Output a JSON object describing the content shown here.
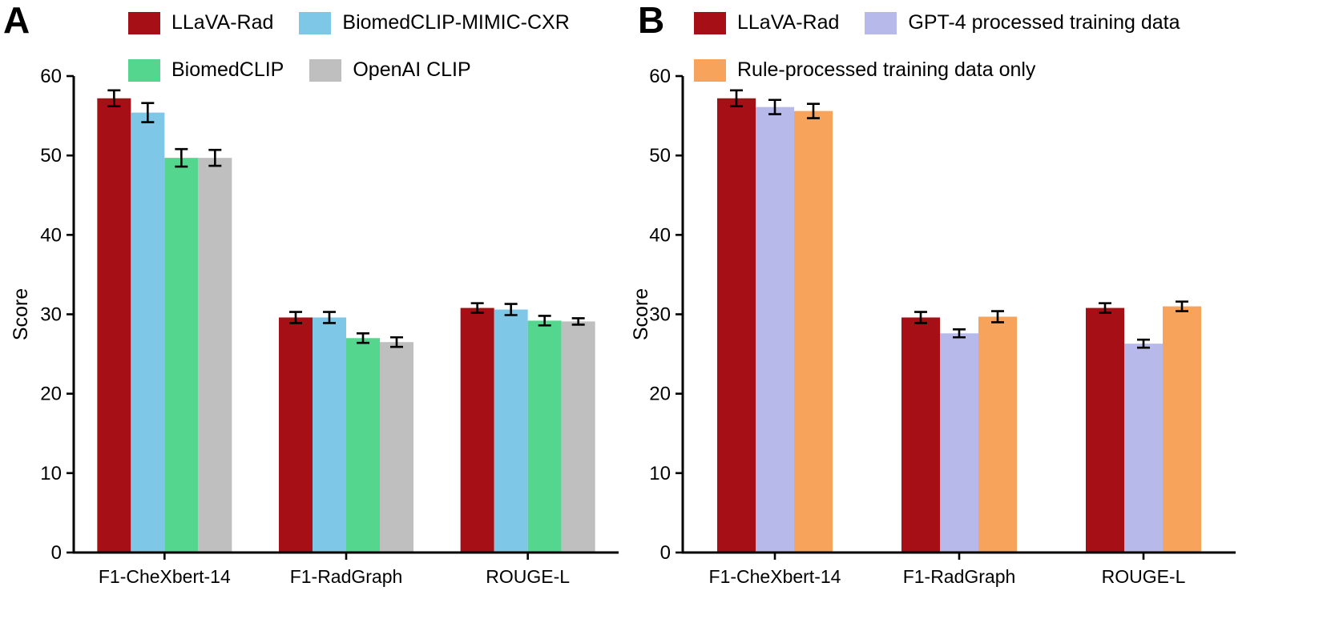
{
  "chart_data": [
    {
      "type": "bar",
      "panel_label": "A",
      "title": "",
      "xlabel": "",
      "ylabel": "Score",
      "ylim": [
        0,
        60
      ],
      "yticks": [
        0,
        10,
        20,
        30,
        40,
        50,
        60
      ],
      "grid": false,
      "legend_position": "top",
      "error_bars": true,
      "categories": [
        "F1-CheXbert-14",
        "F1-RadGraph",
        "ROUGE-L"
      ],
      "series": [
        {
          "name": "LLaVA-Rad",
          "color": "#a50f15",
          "values": [
            57.2,
            29.6,
            30.8
          ],
          "errors": [
            1.0,
            0.7,
            0.6
          ]
        },
        {
          "name": "BiomedCLIP-MIMIC-CXR",
          "color": "#7fc7e6",
          "values": [
            55.4,
            29.6,
            30.6
          ],
          "errors": [
            1.2,
            0.7,
            0.7
          ]
        },
        {
          "name": "BiomedCLIP",
          "color": "#55d68e",
          "values": [
            49.7,
            27.0,
            29.2
          ],
          "errors": [
            1.1,
            0.6,
            0.6
          ]
        },
        {
          "name": "OpenAI CLIP",
          "color": "#bfbfbf",
          "values": [
            49.7,
            26.5,
            29.1
          ],
          "errors": [
            1.0,
            0.6,
            0.4
          ]
        }
      ],
      "legend_rows": [
        [
          0,
          1
        ],
        [
          2,
          3
        ]
      ]
    },
    {
      "type": "bar",
      "panel_label": "B",
      "title": "",
      "xlabel": "",
      "ylabel": "Score",
      "ylim": [
        0,
        60
      ],
      "yticks": [
        0,
        10,
        20,
        30,
        40,
        50,
        60
      ],
      "grid": false,
      "legend_position": "top",
      "error_bars": true,
      "categories": [
        "F1-CheXbert-14",
        "F1-RadGraph",
        "ROUGE-L"
      ],
      "series": [
        {
          "name": "LLaVA-Rad",
          "color": "#a50f15",
          "values": [
            57.2,
            29.6,
            30.8
          ],
          "errors": [
            1.0,
            0.7,
            0.6
          ]
        },
        {
          "name": "GPT-4 processed training data",
          "color": "#b7b9ea",
          "values": [
            56.1,
            27.6,
            26.3
          ],
          "errors": [
            0.9,
            0.5,
            0.5
          ]
        },
        {
          "name": "Rule-processed training data only",
          "color": "#f7a35c",
          "values": [
            55.6,
            29.7,
            31.0
          ],
          "errors": [
            0.9,
            0.7,
            0.6
          ]
        }
      ],
      "legend_rows": [
        [
          0,
          1
        ],
        [
          2
        ]
      ]
    }
  ],
  "colors": {
    "axis": "#000000",
    "error_bar": "#000000",
    "background": "#ffffff"
  }
}
